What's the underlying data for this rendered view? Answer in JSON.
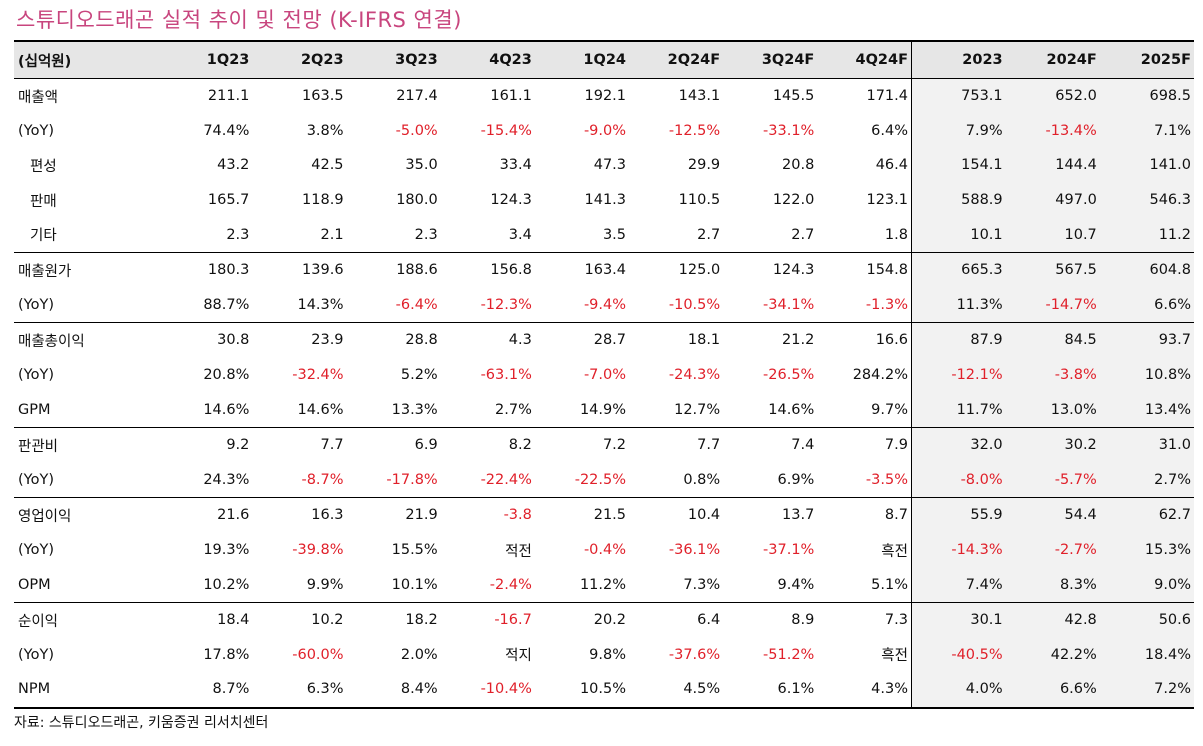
{
  "title": "스튜디오드래곤 실적 추이 및 전망 (K-IFRS 연결)",
  "header": [
    "(십억원)",
    "1Q23",
    "2Q23",
    "3Q23",
    "4Q23",
    "1Q24",
    "2Q24F",
    "3Q24F",
    "4Q24F",
    "2023",
    "2024F",
    "2025F"
  ],
  "rows": [
    {
      "label": "매출액",
      "indent": false,
      "values": [
        "211.1",
        "163.5",
        "217.4",
        "161.1",
        "192.1",
        "143.1",
        "145.5",
        "171.4",
        "753.1",
        "652.0",
        "698.5"
      ]
    },
    {
      "label": "(YoY)",
      "indent": false,
      "values": [
        "74.4%",
        "3.8%",
        "-5.0%",
        "-15.4%",
        "-9.0%",
        "-12.5%",
        "-33.1%",
        "6.4%",
        "7.9%",
        "-13.4%",
        "7.1%"
      ]
    },
    {
      "label": "편성",
      "indent": true,
      "values": [
        "43.2",
        "42.5",
        "35.0",
        "33.4",
        "47.3",
        "29.9",
        "20.8",
        "46.4",
        "154.1",
        "144.4",
        "141.0"
      ]
    },
    {
      "label": "판매",
      "indent": true,
      "values": [
        "165.7",
        "118.9",
        "180.0",
        "124.3",
        "141.3",
        "110.5",
        "122.0",
        "123.1",
        "588.9",
        "497.0",
        "546.3"
      ]
    },
    {
      "label": "기타",
      "indent": true,
      "groupEnd": true,
      "values": [
        "2.3",
        "2.1",
        "2.3",
        "3.4",
        "3.5",
        "2.7",
        "2.7",
        "1.8",
        "10.1",
        "10.7",
        "11.2"
      ]
    },
    {
      "label": "매출원가",
      "indent": false,
      "values": [
        "180.3",
        "139.6",
        "188.6",
        "156.8",
        "163.4",
        "125.0",
        "124.3",
        "154.8",
        "665.3",
        "567.5",
        "604.8"
      ]
    },
    {
      "label": "(YoY)",
      "indent": false,
      "groupEnd": true,
      "values": [
        "88.7%",
        "14.3%",
        "-6.4%",
        "-12.3%",
        "-9.4%",
        "-10.5%",
        "-34.1%",
        "-1.3%",
        "11.3%",
        "-14.7%",
        "6.6%"
      ]
    },
    {
      "label": "매출총이익",
      "indent": false,
      "values": [
        "30.8",
        "23.9",
        "28.8",
        "4.3",
        "28.7",
        "18.1",
        "21.2",
        "16.6",
        "87.9",
        "84.5",
        "93.7"
      ]
    },
    {
      "label": "(YoY)",
      "indent": false,
      "values": [
        "20.8%",
        "-32.4%",
        "5.2%",
        "-63.1%",
        "-7.0%",
        "-24.3%",
        "-26.5%",
        "284.2%",
        "-12.1%",
        "-3.8%",
        "10.8%"
      ]
    },
    {
      "label": "GPM",
      "indent": false,
      "groupEnd": true,
      "values": [
        "14.6%",
        "14.6%",
        "13.3%",
        "2.7%",
        "14.9%",
        "12.7%",
        "14.6%",
        "9.7%",
        "11.7%",
        "13.0%",
        "13.4%"
      ]
    },
    {
      "label": "판관비",
      "indent": false,
      "values": [
        "9.2",
        "7.7",
        "6.9",
        "8.2",
        "7.2",
        "7.7",
        "7.4",
        "7.9",
        "32.0",
        "30.2",
        "31.0"
      ]
    },
    {
      "label": "(YoY)",
      "indent": false,
      "groupEnd": true,
      "values": [
        "24.3%",
        "-8.7%",
        "-17.8%",
        "-22.4%",
        "-22.5%",
        "0.8%",
        "6.9%",
        "-3.5%",
        "-8.0%",
        "-5.7%",
        "2.7%"
      ]
    },
    {
      "label": "영업이익",
      "indent": false,
      "values": [
        "21.6",
        "16.3",
        "21.9",
        "-3.8",
        "21.5",
        "10.4",
        "13.7",
        "8.7",
        "55.9",
        "54.4",
        "62.7"
      ]
    },
    {
      "label": "(YoY)",
      "indent": false,
      "values": [
        "19.3%",
        "-39.8%",
        "15.5%",
        "적전",
        "-0.4%",
        "-36.1%",
        "-37.1%",
        "흑전",
        "-14.3%",
        "-2.7%",
        "15.3%"
      ]
    },
    {
      "label": "OPM",
      "indent": false,
      "groupEnd": true,
      "values": [
        "10.2%",
        "9.9%",
        "10.1%",
        "-2.4%",
        "11.2%",
        "7.3%",
        "9.4%",
        "5.1%",
        "7.4%",
        "8.3%",
        "9.0%"
      ]
    },
    {
      "label": "순이익",
      "indent": false,
      "values": [
        "18.4",
        "10.2",
        "18.2",
        "-16.7",
        "20.2",
        "6.4",
        "8.9",
        "7.3",
        "30.1",
        "42.8",
        "50.6"
      ]
    },
    {
      "label": "(YoY)",
      "indent": false,
      "values": [
        "17.8%",
        "-60.0%",
        "2.0%",
        "적지",
        "9.8%",
        "-37.6%",
        "-51.2%",
        "흑전",
        "-40.5%",
        "42.2%",
        "18.4%"
      ]
    },
    {
      "label": "NPM",
      "indent": false,
      "last": true,
      "values": [
        "8.7%",
        "6.3%",
        "8.4%",
        "-10.4%",
        "10.5%",
        "4.5%",
        "6.1%",
        "4.3%",
        "4.0%",
        "6.6%",
        "7.2%"
      ]
    }
  ],
  "source": "자료: 스튜디오드래곤, 키움증권 리서치센터",
  "colors": {
    "title": "#c8457e",
    "negative": "#e0202a",
    "header_bg": "#e6e6e6",
    "annual_bg": "#f2f2f2"
  }
}
